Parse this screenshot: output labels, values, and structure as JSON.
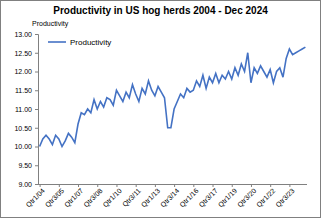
{
  "chart_data": {
    "type": "line",
    "title": "Productivity in US hog herds 2004 - Dec 2024",
    "y_label": "Productivity",
    "categories": [
      "Qtr1/04",
      null,
      null,
      null,
      null,
      null,
      "Qtr3/05",
      null,
      null,
      null,
      null,
      null,
      "Qtr1/07",
      null,
      null,
      null,
      null,
      null,
      "Qtr3/08",
      null,
      null,
      null,
      null,
      null,
      "Qtr1/10",
      null,
      null,
      null,
      null,
      null,
      "Qtr3/11",
      null,
      null,
      null,
      null,
      null,
      "Qtr1/13",
      null,
      null,
      null,
      null,
      null,
      "Qtr3/14",
      null,
      null,
      null,
      null,
      null,
      "Qtr1/16",
      null,
      null,
      null,
      null,
      null,
      "Qtr3/17",
      null,
      null,
      null,
      null,
      null,
      "Qtr1/19",
      null,
      null,
      null,
      null,
      null,
      "Qtr3/20",
      null,
      null,
      null,
      null,
      null,
      "Qtr1/22",
      null,
      null,
      null,
      null,
      null,
      "Qtr3/23",
      null,
      null,
      null,
      null,
      null
    ],
    "series": [
      {
        "name": "Productivity",
        "color": "#4472c4",
        "values": [
          10.0,
          10.2,
          10.3,
          10.2,
          10.05,
          10.3,
          10.2,
          10.0,
          10.15,
          10.35,
          10.25,
          10.1,
          10.6,
          10.9,
          10.85,
          11.0,
          10.9,
          11.25,
          11.0,
          11.2,
          11.05,
          11.3,
          11.25,
          11.1,
          11.5,
          11.35,
          11.2,
          11.45,
          11.3,
          11.65,
          11.4,
          11.2,
          11.55,
          11.4,
          11.75,
          11.5,
          11.35,
          11.6,
          11.45,
          11.3,
          10.5,
          10.5,
          11.0,
          11.2,
          11.4,
          11.3,
          11.55,
          11.45,
          11.5,
          11.75,
          11.6,
          11.9,
          11.55,
          11.85,
          11.7,
          11.95,
          11.7,
          11.9,
          11.8,
          12.0,
          11.8,
          12.1,
          11.9,
          12.2,
          12.0,
          12.5,
          11.7,
          12.1,
          11.95,
          12.15,
          12.0,
          11.85,
          12.05,
          11.7,
          12.0,
          12.1,
          11.85,
          12.35,
          12.6,
          12.45,
          12.5,
          12.55,
          12.6,
          12.65
        ]
      }
    ],
    "ylim": [
      9,
      13
    ],
    "yticks": [
      {
        "value": 9,
        "label": "9.00"
      },
      {
        "value": 9.5,
        "label": "9.50"
      },
      {
        "value": 10,
        "label": "10.00"
      },
      {
        "value": 10.5,
        "label": "10.50"
      },
      {
        "value": 11,
        "label": "11.00"
      },
      {
        "value": 11.5,
        "label": "11.50"
      },
      {
        "value": 12,
        "label": "12.00"
      },
      {
        "value": 12.5,
        "label": "12.50"
      },
      {
        "value": 13,
        "label": "13.00"
      }
    ],
    "grid": false,
    "legend": "top-left"
  }
}
